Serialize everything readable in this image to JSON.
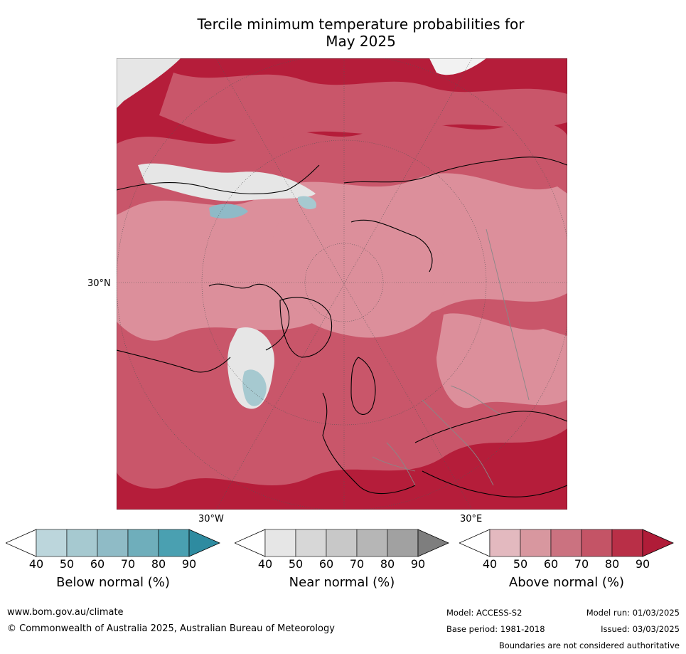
{
  "title_line1": "Tercile minimum temperature probabilities for",
  "title_line2": "May 2025",
  "map": {
    "lat_label": "30°N",
    "lon_labels": [
      "30°W",
      "30°E"
    ],
    "colors": {
      "above_dark": "#b51d3a",
      "above_mid": "#c9566a",
      "above_light": "#dc8f9b",
      "near": "#e6e6e6",
      "below": "#8fbac7",
      "coast": "#000000",
      "border": "#888888"
    }
  },
  "colorbars": [
    {
      "label": "Below normal (%)",
      "ticks": [
        "40",
        "50",
        "60",
        "70",
        "80",
        "90"
      ],
      "colors": [
        "#ffffff",
        "#bcd6dc",
        "#a6c9d0",
        "#8fbbc6",
        "#6faebb",
        "#4aa0b1",
        "#2e8ba0"
      ]
    },
    {
      "label": "Near normal (%)",
      "ticks": [
        "40",
        "50",
        "60",
        "70",
        "80",
        "90"
      ],
      "colors": [
        "#ffffff",
        "#e6e6e6",
        "#d7d7d7",
        "#c8c8c8",
        "#b6b6b6",
        "#a1a1a1",
        "#7e7e7e"
      ]
    },
    {
      "label": "Above normal (%)",
      "ticks": [
        "40",
        "50",
        "60",
        "70",
        "80",
        "90"
      ],
      "colors": [
        "#ffffff",
        "#e3b9bf",
        "#d8979f",
        "#cb7280",
        "#c45466",
        "#b92f47",
        "#b01c38"
      ]
    }
  ],
  "footer": {
    "website": "www.bom.gov.au/climate",
    "copyright": "© Commonwealth of Australia 2025, Australian Bureau of Meteorology",
    "model": "Model: ACCESS-S2",
    "base_period": "Base period: 1981-2018",
    "model_run": "Model run: 01/03/2025",
    "issued": "Issued: 03/03/2025",
    "disclaimer": "Boundaries are not considered authoritative"
  }
}
